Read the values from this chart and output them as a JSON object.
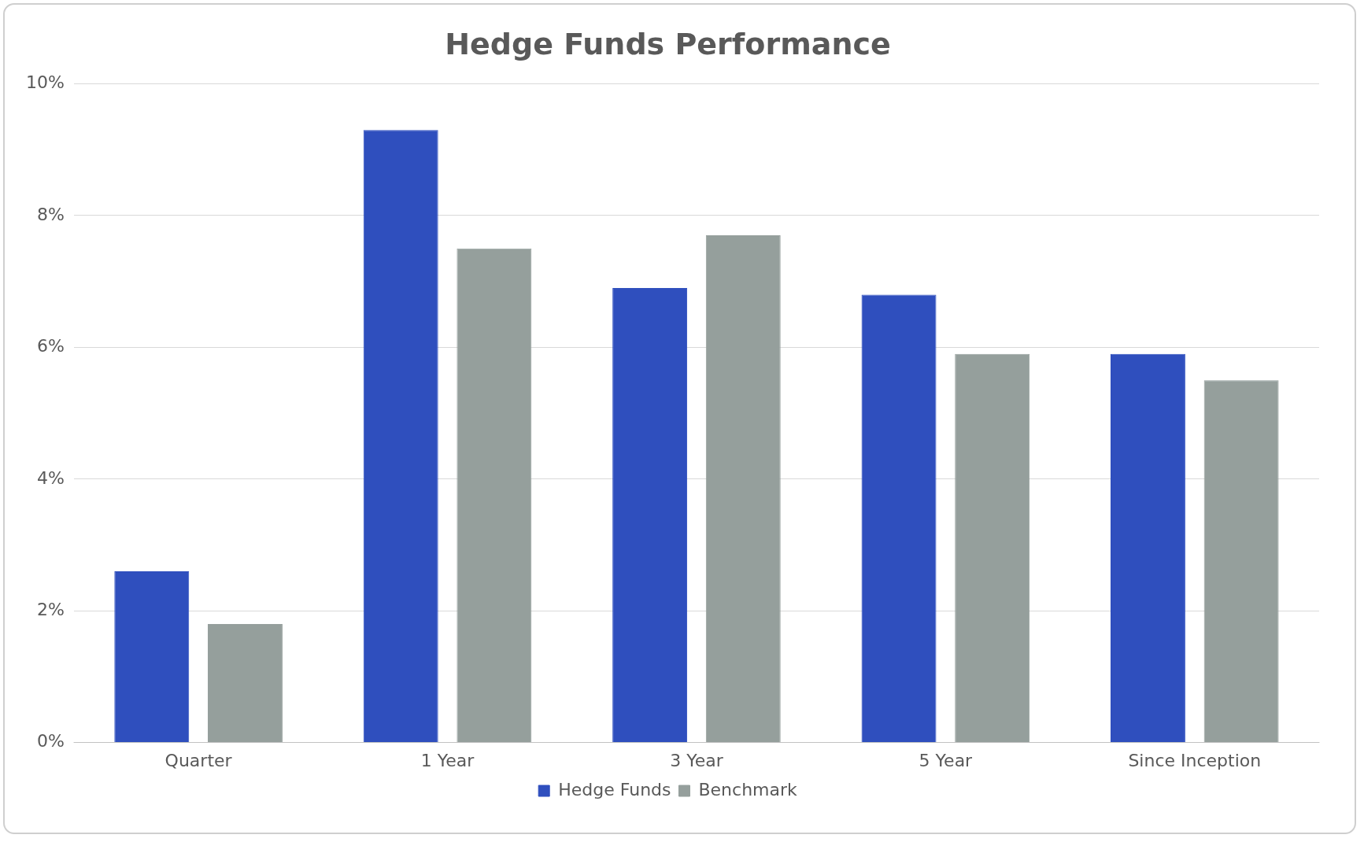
{
  "chart_data": {
    "type": "bar",
    "title": "Hedge Funds Performance",
    "categories": [
      "Quarter",
      "1 Year",
      "3 Year",
      "5 Year",
      "Since Inception"
    ],
    "series": [
      {
        "name": "Hedge Funds",
        "color": "#2f4fbe",
        "values": [
          2.6,
          9.3,
          6.9,
          6.8,
          5.9
        ]
      },
      {
        "name": "Benchmark",
        "color": "#959f9c",
        "values": [
          1.8,
          7.5,
          7.7,
          5.9,
          5.5
        ]
      }
    ],
    "ylim": [
      0,
      10
    ],
    "yticks": [
      {
        "value": 0,
        "label": "0%"
      },
      {
        "value": 2,
        "label": "2%"
      },
      {
        "value": 4,
        "label": "4%"
      },
      {
        "value": 6,
        "label": "6%"
      },
      {
        "value": 8,
        "label": "8%"
      },
      {
        "value": 10,
        "label": "10%"
      }
    ],
    "grid": "y",
    "legend": "bottom"
  }
}
